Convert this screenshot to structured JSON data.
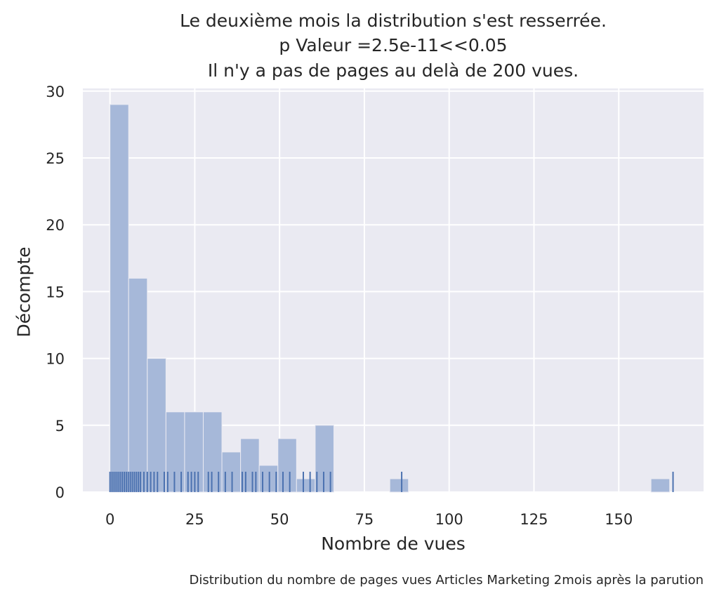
{
  "title_lines": [
    "Le deuxième mois la distribution s'est resserrée.",
    "p Valeur =2.5e-11<<0.05",
    "Il n'y a pas de pages au delà de 200 vues."
  ],
  "caption": "Distribution du nombre de pages vues Articles Marketing 2mois après la parution",
  "colors": {
    "background": "#eaeaf2",
    "grid": "#ffffff",
    "bar": "#a6b8d9",
    "rug": "#4c72b0"
  },
  "chart_data": {
    "type": "bar",
    "title": "Le deuxième mois la distribution s'est resserrée.\np Valeur =2.5e-11<<0.05\nIl n'y a pas de pages au delà de 200 vues.",
    "xlabel": "Nombre de vues",
    "ylabel": "Décompte",
    "xlim": [
      -8,
      175
    ],
    "ylim": [
      0,
      30.2
    ],
    "grid": true,
    "xticks": [
      0,
      25,
      50,
      75,
      100,
      125,
      150
    ],
    "yticks": [
      0,
      5,
      10,
      15,
      20,
      25,
      30
    ],
    "bin_width": 5.5,
    "bins": [
      {
        "start": 0,
        "count": 29
      },
      {
        "start": 5.5,
        "count": 16
      },
      {
        "start": 11,
        "count": 10
      },
      {
        "start": 16.5,
        "count": 6
      },
      {
        "start": 22,
        "count": 6
      },
      {
        "start": 27.5,
        "count": 6
      },
      {
        "start": 33,
        "count": 3
      },
      {
        "start": 38.5,
        "count": 4
      },
      {
        "start": 44,
        "count": 2
      },
      {
        "start": 49.5,
        "count": 4
      },
      {
        "start": 55,
        "count": 1
      },
      {
        "start": 60.5,
        "count": 5
      },
      {
        "start": 66,
        "count": 0
      },
      {
        "start": 71.5,
        "count": 0
      },
      {
        "start": 77,
        "count": 0
      },
      {
        "start": 82.5,
        "count": 1
      },
      {
        "start": 88,
        "count": 0
      },
      {
        "start": 93.5,
        "count": 0
      },
      {
        "start": 99,
        "count": 0
      },
      {
        "start": 104.5,
        "count": 0
      },
      {
        "start": 110,
        "count": 0
      },
      {
        "start": 115.5,
        "count": 0
      },
      {
        "start": 121,
        "count": 0
      },
      {
        "start": 126.5,
        "count": 0
      },
      {
        "start": 132,
        "count": 0
      },
      {
        "start": 137.5,
        "count": 0
      },
      {
        "start": 143,
        "count": 0
      },
      {
        "start": 148.5,
        "count": 0
      },
      {
        "start": 154,
        "count": 0
      },
      {
        "start": 159.5,
        "count": 1
      }
    ],
    "rug_values": [
      0,
      0.6,
      1.2,
      1.8,
      2.4,
      3,
      3.6,
      4.2,
      4.8,
      5.4,
      6,
      6.6,
      7.2,
      7.8,
      8.4,
      9,
      10,
      11,
      12,
      13,
      14,
      16,
      17,
      19,
      21,
      23,
      24,
      25,
      26,
      29,
      30,
      32,
      34,
      36,
      39,
      40,
      42,
      43,
      45,
      47,
      49,
      51,
      53,
      57,
      59,
      61,
      63,
      65,
      86,
      166
    ]
  }
}
